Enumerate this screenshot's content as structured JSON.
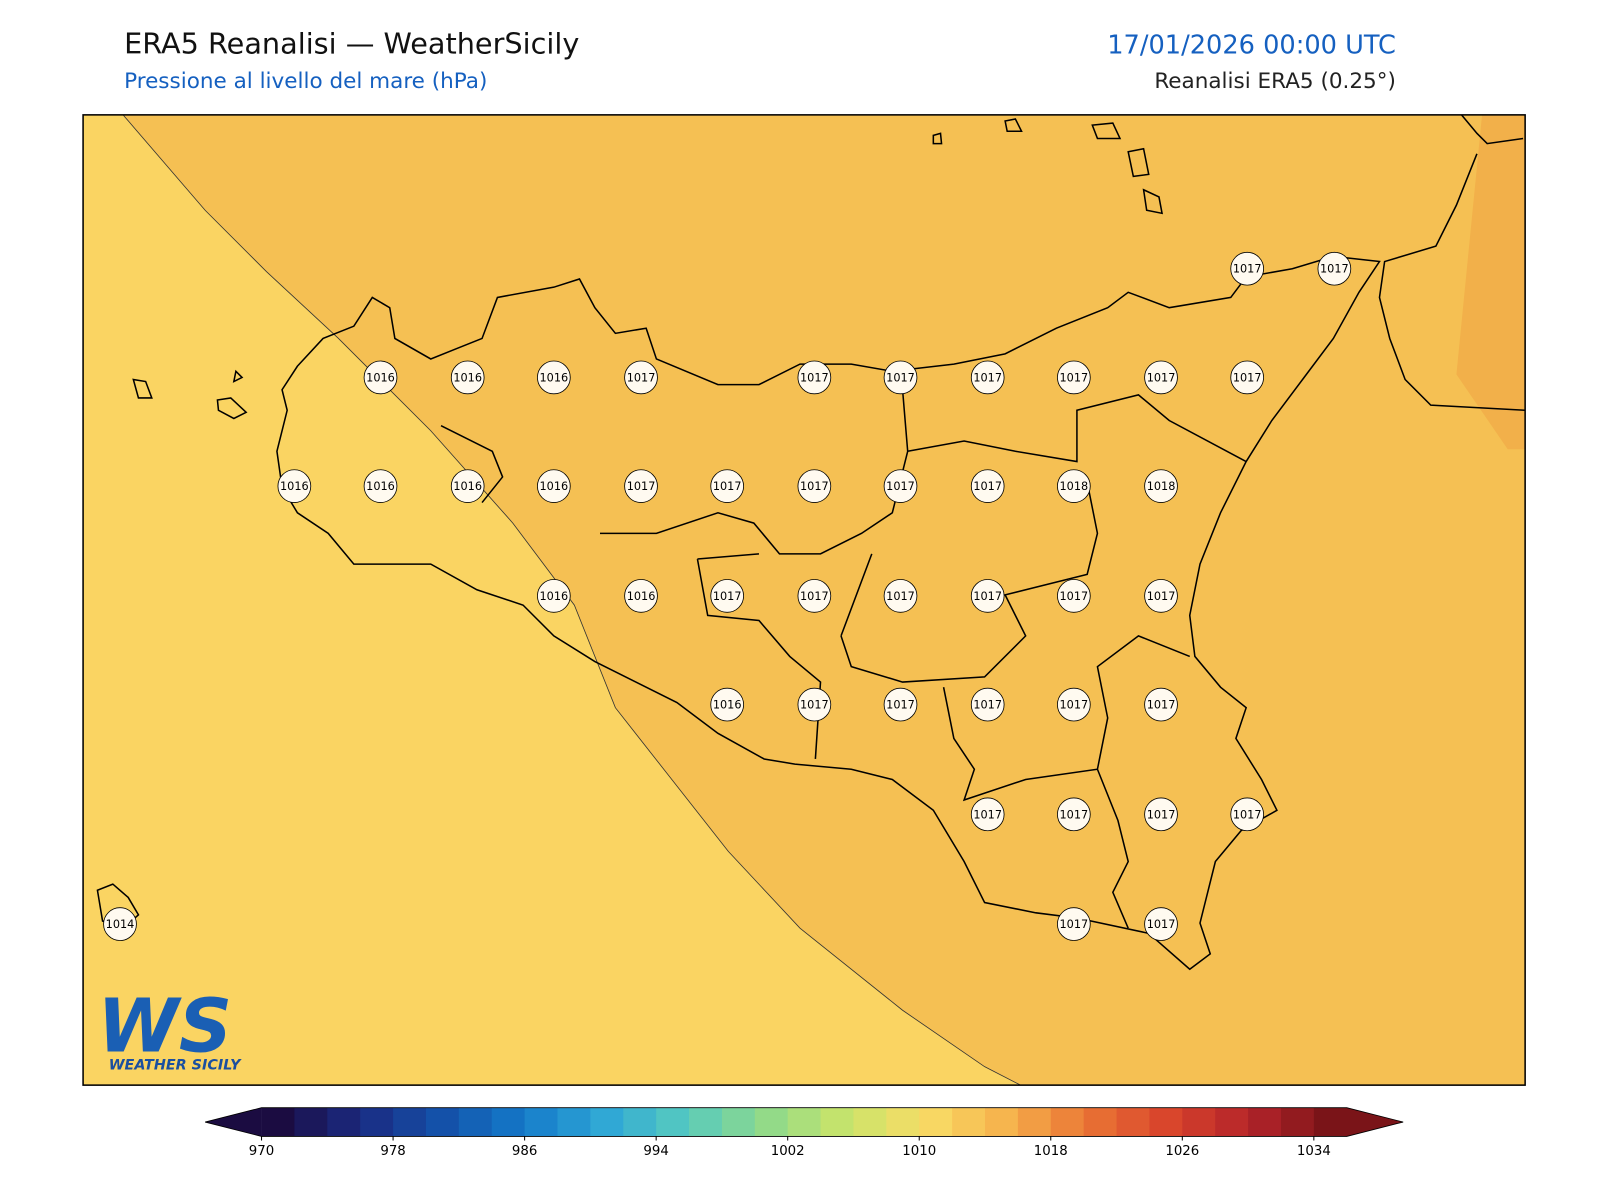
{
  "header": {
    "title": "ERA5 Reanalisi — WeatherSicily",
    "subtitle": "Pressione al livello del mare (hPa)",
    "datetime": "17/01/2026 00:00 UTC",
    "source": "Reanalisi ERA5 (0.25°)"
  },
  "stations": [
    1017,
    1017,
    1016,
    1016,
    1016,
    1017,
    1017,
    1017,
    1017,
    1017,
    1017,
    1017,
    1016,
    1016,
    1016,
    1016,
    1017,
    1017,
    1017,
    1017,
    1017,
    1018,
    1018,
    1016,
    1016,
    1017,
    1017,
    1017,
    1017,
    1017,
    1017,
    1016,
    1017,
    1017,
    1017,
    1017,
    1017,
    1017,
    1017,
    1017,
    1017,
    1014,
    1017,
    1017
  ],
  "colorbar": {
    "lim": [
      970,
      1036
    ],
    "step": 2,
    "ticks": [
      970,
      978,
      986,
      994,
      1002,
      1010,
      1018,
      1026,
      1034
    ],
    "colormap": [
      "#1b0c41",
      "#1b2a80",
      "#1450a8",
      "#1478c8",
      "#2ea6d6",
      "#55c9c0",
      "#8ed98b",
      "#c8e46a",
      "#f8dc66",
      "#f6b24c",
      "#ea7434",
      "#d8442c",
      "#b4242a",
      "#7a1418"
    ]
  },
  "fields": {
    "colors": [
      "#fad462",
      "#f5c053",
      "#f2b04a"
    ]
  },
  "logo": {
    "mark": "WS",
    "name": "WEATHER SICILY"
  }
}
